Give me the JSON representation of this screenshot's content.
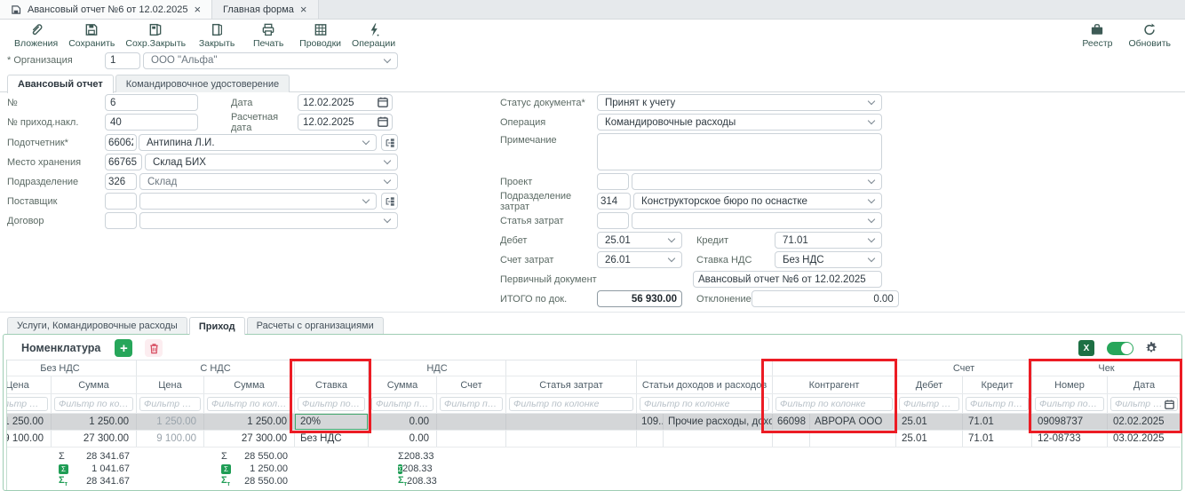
{
  "colors": {
    "green": "#27a65a",
    "excel_green": "#1d7044",
    "summary_green": "#1f9d55",
    "annotation_red": "#ec1c24",
    "danger_red": "#d6495d",
    "toolbar_icon": "#3d5a55"
  },
  "icons": {
    "close": "×",
    "plus": "+",
    "sigma": "Σ",
    "sigma_total_sub": "т",
    "excel": "X"
  },
  "window_tabs": {
    "tab1": "Авансовый отчет №6 от 12.02.2025",
    "tab2": "Главная форма"
  },
  "toolbar": {
    "items": [
      {
        "id": "attachments",
        "label": "Вложения"
      },
      {
        "id": "save",
        "label": "Сохранить"
      },
      {
        "id": "save-close",
        "label": "Сохр.Закрыть"
      },
      {
        "id": "close",
        "label": "Закрыть"
      },
      {
        "id": "print",
        "label": "Печать"
      },
      {
        "id": "postings",
        "label": "Проводки"
      },
      {
        "id": "operations",
        "label": "Операции"
      }
    ],
    "right": [
      {
        "id": "registry",
        "label": "Реестр"
      },
      {
        "id": "refresh",
        "label": "Обновить"
      }
    ]
  },
  "org": {
    "label": "* Организация",
    "code": "1",
    "name": "ООО \"Альфа\""
  },
  "doc_tabs": {
    "tab1": "Авансовый отчет",
    "tab2": "Командировочное удостоверение"
  },
  "left": {
    "num_label": "№",
    "num": "6",
    "date_label": "Дата",
    "date": "12.02.2025",
    "inv_label": "№ приход.накл.",
    "inv": "40",
    "calc_label": "Расчетная дата",
    "calc_date": "12.02.2025",
    "acc_label": "Подотчетник*",
    "acc_code": "66062",
    "acc_name": "Антипина Л.И.",
    "store_label": "Место хранения",
    "store_code": "66765",
    "store_name": "Склад БИХ",
    "dept_label": "Подразделение",
    "dept_code": "326",
    "dept_name": "Склад",
    "supplier_label": "Поставщик",
    "contract_label": "Договор"
  },
  "right": {
    "status_label": "Статус документа*",
    "status": "Принят к учету",
    "operation_label": "Операция",
    "operation": "Командировочные расходы",
    "note_label": "Примечание",
    "project_label": "Проект",
    "cost_dept_label": "Подразделение затрат",
    "cost_dept_code": "314",
    "cost_dept_name": "Конструкторское бюро по оснастке",
    "cost_item_label": "Статья затрат",
    "debit_label": "Дебет",
    "debit": "25.01",
    "credit_label": "Кредит",
    "credit": "71.01",
    "cost_account_label": "Счет затрат",
    "cost_account": "26.01",
    "vat_label": "Ставка НДС",
    "vat": "Без НДС",
    "primary_label": "Первичный документ",
    "primary": "Авансовый отчет №6 от 12.02.2025",
    "total_label": "ИТОГО по док.",
    "total": "56 930.00",
    "deviation_label": "Отклонение",
    "deviation": "0.00"
  },
  "bottom_tabs": {
    "tab1": "Услуги, Командировочные расходы",
    "tab2": "Приход",
    "tab3": "Расчеты с организациями"
  },
  "nomenclature_label": "Номенклатура",
  "table": {
    "filter_placeholder": "Фильтр по колонке",
    "groups": [
      {
        "label": "Без НДС",
        "cols": [
          0,
          1
        ]
      },
      {
        "label": "С НДС",
        "cols": [
          2,
          3
        ]
      },
      {
        "label": "",
        "cols": [
          4
        ]
      },
      {
        "label": "НДС",
        "cols": [
          5,
          6
        ]
      },
      {
        "label": "",
        "cols": [
          7
        ]
      },
      {
        "label": "",
        "cols": [
          8
        ]
      },
      {
        "label": "",
        "cols": [
          9
        ]
      },
      {
        "label": "Счет",
        "cols": [
          10,
          11
        ]
      },
      {
        "label": "Чек",
        "cols": [
          12,
          13
        ]
      }
    ],
    "columns": [
      {
        "label": "Цена",
        "align": "right"
      },
      {
        "label": "Сумма",
        "align": "right"
      },
      {
        "label": "Цена",
        "align": "right",
        "muted": true
      },
      {
        "label": "Сумма",
        "align": "right"
      },
      {
        "label": "Ставка",
        "align": "left"
      },
      {
        "label": "Сумма",
        "align": "right"
      },
      {
        "label": "Счет",
        "align": "left"
      },
      {
        "label": "Статья затрат",
        "align": "left"
      },
      {
        "label": "Статьи доходов и расходов",
        "align": "left",
        "composite": true
      },
      {
        "label": "Контрагент",
        "align": "left",
        "composite": true
      },
      {
        "label": "Дебет",
        "align": "left"
      },
      {
        "label": "Кредит",
        "align": "left"
      },
      {
        "label": "Номер",
        "align": "left"
      },
      {
        "label": "Дата",
        "align": "left",
        "calendar": true
      }
    ],
    "rows": [
      {
        "selected": true,
        "selected_cell": 4,
        "cells": [
          "1 250.00",
          "1 250.00",
          "1 250.00",
          "1 250.00",
          "20%",
          "0.00",
          "",
          "",
          {
            "code": "109...",
            "name": "Прочие расходы, дохо..."
          },
          {
            "code": "66098",
            "name": "АВРОРА ООО"
          },
          "25.01",
          "71.01",
          "09098737",
          "02.02.2025"
        ]
      },
      {
        "selected": false,
        "cells": [
          "9 100.00",
          "27 300.00",
          "9 100.00",
          "27 300.00",
          "Без НДС",
          "0.00",
          "",
          "",
          {
            "code": "",
            "name": ""
          },
          {
            "code": "",
            "name": ""
          },
          "25.01",
          "71.01",
          "12-08733",
          "03.02.2025"
        ]
      }
    ],
    "totals": [
      {
        "sum": "28 341.67",
        "selected": "1 041.67",
        "grand": "28 341.67"
      },
      {
        "sum": "28 550.00",
        "selected": "1 250.00",
        "grand": "28 550.00"
      },
      {
        "sum": "208.33",
        "selected": "208.33",
        "grand": "208.33"
      }
    ]
  }
}
